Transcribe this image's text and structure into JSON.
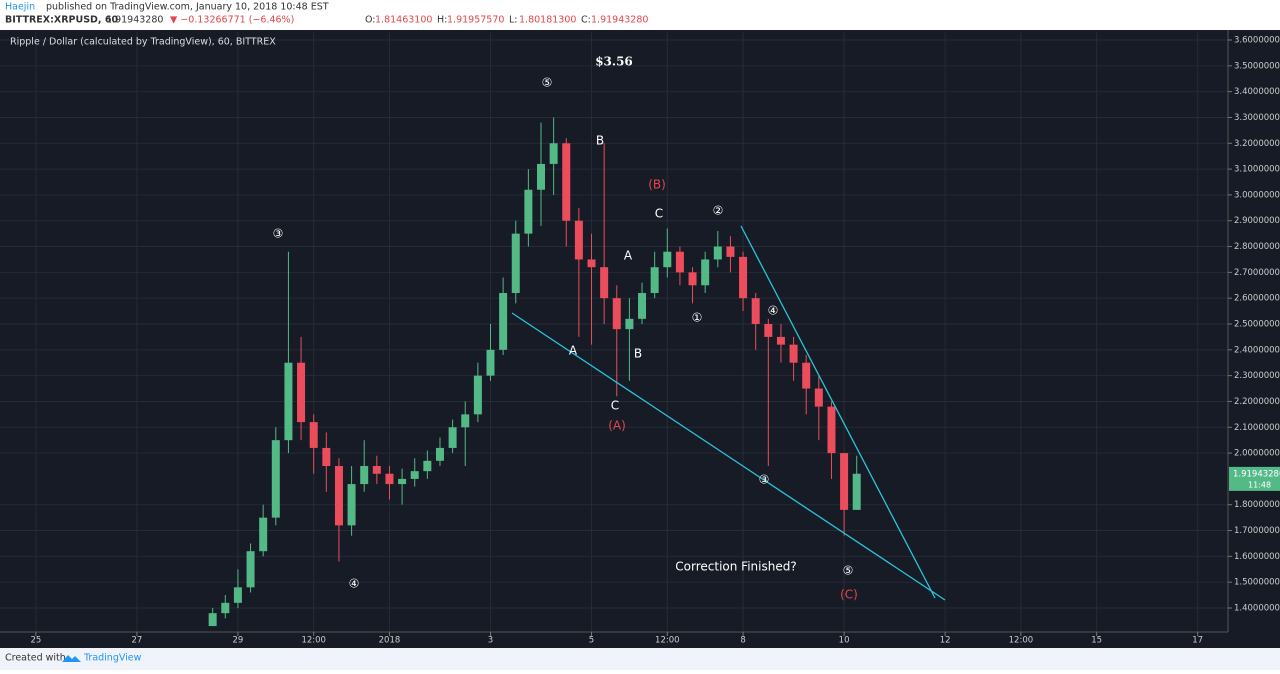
{
  "header": {
    "author": "Haejin",
    "published": "published on TradingView.com, January 10, 2018 10:48 EST",
    "symbol": "BITTREX:XRPUSD, 60",
    "price": "1.91943280",
    "change": "▼ −0.13266771 (−6.46%)",
    "ohlc": [
      {
        "label": "O:",
        "value": "1.81463100"
      },
      {
        "label": "H:",
        "value": "1.91957570"
      },
      {
        "label": "L:",
        "value": "1.80181300"
      },
      {
        "label": "C:",
        "value": "1.91943280"
      }
    ]
  },
  "chart_data": {
    "type": "candlestick",
    "title": "Ripple / Dollar (calculated by TradingView), 60, BITTREX",
    "x": [
      3.5,
      3.75,
      4,
      4.25,
      4.5,
      4.75,
      5,
      5.25,
      5.5,
      5.75,
      6,
      6.25,
      6.5,
      6.75,
      7,
      7.25,
      7.5,
      7.75,
      8,
      8.25,
      8.5,
      8.75,
      9,
      9.25,
      9.5,
      9.75,
      10,
      10.25,
      10.5,
      10.75,
      11,
      11.25,
      11.5,
      11.75,
      12,
      12.25,
      12.5,
      12.75,
      13,
      13.25,
      13.5,
      13.75,
      14,
      14.25,
      14.5,
      14.75,
      15,
      15.25,
      15.5,
      15.75,
      16,
      16.25
    ],
    "open": [
      1.33,
      1.38,
      1.42,
      1.48,
      1.62,
      1.75,
      2.05,
      2.35,
      2.12,
      2.02,
      1.95,
      1.72,
      1.88,
      1.95,
      1.92,
      1.88,
      1.9,
      1.93,
      1.97,
      2.02,
      2.1,
      2.15,
      2.3,
      2.4,
      2.62,
      2.85,
      3.02,
      3.12,
      3.2,
      2.9,
      2.75,
      2.72,
      2.6,
      2.48,
      2.52,
      2.62,
      2.72,
      2.78,
      2.7,
      2.65,
      2.75,
      2.8,
      2.76,
      2.6,
      2.5,
      2.45,
      2.42,
      2.35,
      2.25,
      2.18,
      2.0,
      1.78
    ],
    "high": [
      1.4,
      1.45,
      1.55,
      1.65,
      1.8,
      2.1,
      2.78,
      2.45,
      2.15,
      2.08,
      1.98,
      1.95,
      2.05,
      1.99,
      1.95,
      1.94,
      1.98,
      2.01,
      2.06,
      2.13,
      2.2,
      2.35,
      2.5,
      2.68,
      2.9,
      3.1,
      3.28,
      3.3,
      3.22,
      2.95,
      2.85,
      3.2,
      2.65,
      2.6,
      2.66,
      2.78,
      2.87,
      2.8,
      2.72,
      2.78,
      2.86,
      2.84,
      2.78,
      2.62,
      2.52,
      2.5,
      2.45,
      2.38,
      2.3,
      2.2,
      2.0,
      1.99
    ],
    "low": [
      1.33,
      1.36,
      1.4,
      1.46,
      1.6,
      1.72,
      2.0,
      2.05,
      1.92,
      1.85,
      1.58,
      1.68,
      1.85,
      1.88,
      1.82,
      1.8,
      1.87,
      1.9,
      1.95,
      2.0,
      1.95,
      2.12,
      2.28,
      2.38,
      2.58,
      2.8,
      2.88,
      3.0,
      2.8,
      2.45,
      2.42,
      2.5,
      2.22,
      2.28,
      2.5,
      2.6,
      2.68,
      2.65,
      2.58,
      2.62,
      2.72,
      2.7,
      2.55,
      2.4,
      1.95,
      2.35,
      2.28,
      2.15,
      2.05,
      1.9,
      1.68,
      1.78
    ],
    "close": [
      1.38,
      1.42,
      1.48,
      1.62,
      1.75,
      2.05,
      2.35,
      2.12,
      2.02,
      1.95,
      1.72,
      1.88,
      1.95,
      1.92,
      1.88,
      1.9,
      1.93,
      1.97,
      2.02,
      2.1,
      2.15,
      2.3,
      2.4,
      2.62,
      2.85,
      3.02,
      3.12,
      3.2,
      2.9,
      2.75,
      2.72,
      2.6,
      2.48,
      2.52,
      2.62,
      2.72,
      2.78,
      2.7,
      2.65,
      2.75,
      2.8,
      2.76,
      2.6,
      2.5,
      2.45,
      2.42,
      2.35,
      2.25,
      2.18,
      2.0,
      1.78,
      1.92
    ],
    "up_color": "#53b987",
    "down_color": "#eb4d5c",
    "grid": true,
    "xlim": [
      -0.71,
      23.6
    ],
    "xticks": [
      {
        "value": 0,
        "label": "25"
      },
      {
        "value": 2,
        "label": "27"
      },
      {
        "value": 4,
        "label": "29"
      },
      {
        "value": 5.5,
        "label": "12:00"
      },
      {
        "value": 7,
        "label": "2018"
      },
      {
        "value": 9,
        "label": "3"
      },
      {
        "value": 11,
        "label": "5"
      },
      {
        "value": 12.5,
        "label": "12:00"
      },
      {
        "value": 14,
        "label": "8"
      },
      {
        "value": 16,
        "label": "10"
      },
      {
        "value": 18,
        "label": "12"
      },
      {
        "value": 19.5,
        "label": "12:00"
      },
      {
        "value": 21,
        "label": "15"
      },
      {
        "value": 23,
        "label": "17"
      }
    ],
    "ylim": [
      1.307,
      3.631
    ],
    "yticks": [
      {
        "value": 1.4,
        "label": "1.40000000"
      },
      {
        "value": 1.5,
        "label": "1.50000000"
      },
      {
        "value": 1.6,
        "label": "1.60000000"
      },
      {
        "value": 1.7,
        "label": "1.70000000"
      },
      {
        "value": 1.8,
        "label": "1.80000000"
      },
      {
        "value": 2.0,
        "label": "2.00000000"
      },
      {
        "value": 2.1,
        "label": "2.10000000"
      },
      {
        "value": 2.2,
        "label": "2.20000000"
      },
      {
        "value": 2.3,
        "label": "2.30000000"
      },
      {
        "value": 2.4,
        "label": "2.40000000"
      },
      {
        "value": 2.5,
        "label": "2.50000000"
      },
      {
        "value": 2.6,
        "label": "2.60000000"
      },
      {
        "value": 2.7,
        "label": "2.70000000"
      },
      {
        "value": 2.8,
        "label": "2.80000000"
      },
      {
        "value": 2.9,
        "label": "2.90000000"
      },
      {
        "value": 3.0,
        "label": "3.00000000"
      },
      {
        "value": 3.1,
        "label": "3.10000000"
      },
      {
        "value": 3.2,
        "label": "3.20000000"
      },
      {
        "value": 3.3,
        "label": "3.30000000"
      },
      {
        "value": 3.4,
        "label": "3.40000000"
      },
      {
        "value": 3.5,
        "label": "3.50000000"
      },
      {
        "value": 3.6,
        "label": "3.60000000"
      }
    ],
    "last_price": {
      "value": 1.9194328,
      "label": "1.91943280"
    },
    "countdown": "11:48",
    "annotations": [
      "③",
      "④",
      "⑤",
      "$3.56",
      "B",
      "(B)",
      "C",
      "②",
      "A",
      "①",
      "④",
      "A",
      "B",
      "C",
      "(A)",
      "③",
      "Correction Finished?",
      "⑤",
      "(C)"
    ]
  },
  "footer": {
    "created": "Created with",
    "brand": "TradingView"
  }
}
